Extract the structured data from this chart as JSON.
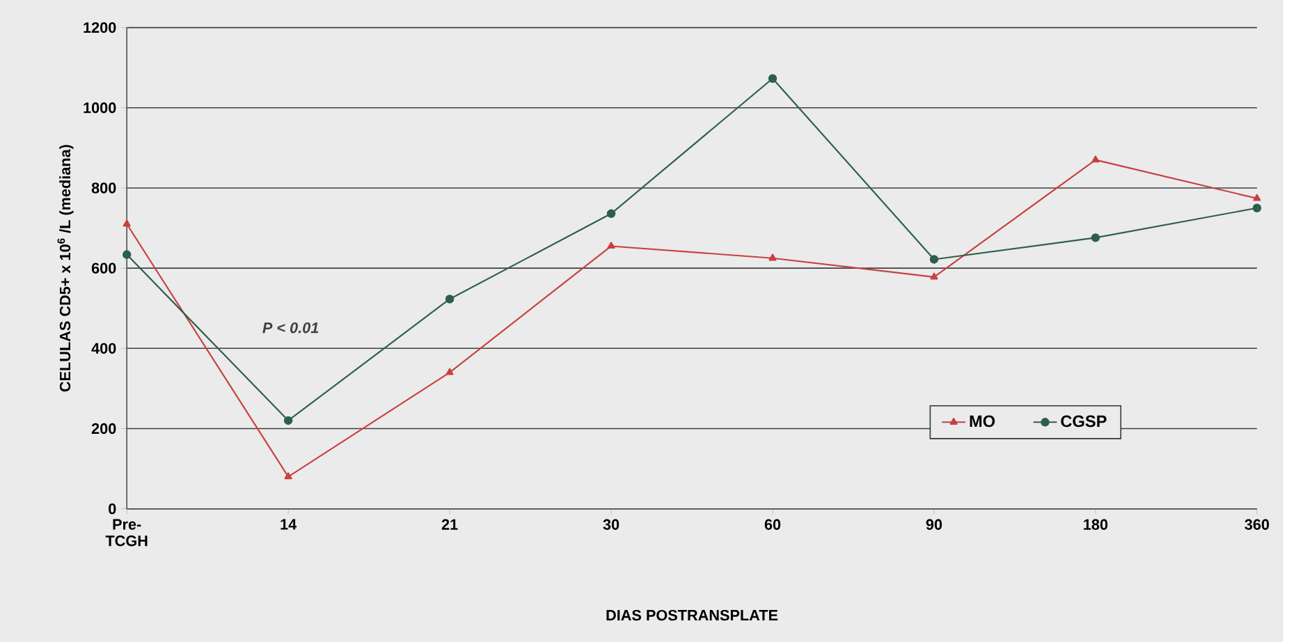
{
  "chart_data": {
    "type": "line",
    "xlabel": "DIAS POSTRANSPLATE",
    "ylabel": "CELULAS CD5+ x 10$^{6}$ /L (mediana)",
    "categories": [
      "Pre-TCGH",
      "14",
      "21",
      "30",
      "60",
      "90",
      "180",
      "360"
    ],
    "series": [
      {
        "name": "MO",
        "color": "#c84040",
        "marker": "triangle",
        "values": [
          710,
          80,
          340,
          655,
          625,
          578,
          870,
          774
        ]
      },
      {
        "name": "CGSP",
        "color": "#2e5e4e",
        "marker": "circle",
        "values": [
          634,
          220,
          523,
          736,
          1073,
          622,
          676,
          750
        ]
      }
    ],
    "ylim": [
      0,
      1200
    ],
    "yticks": [
      0,
      200,
      400,
      600,
      800,
      1000,
      1200
    ],
    "grid": "y",
    "legend": "bottom right",
    "line_style": "solid",
    "annotations": [
      "*P < 0.01*"
    ]
  }
}
